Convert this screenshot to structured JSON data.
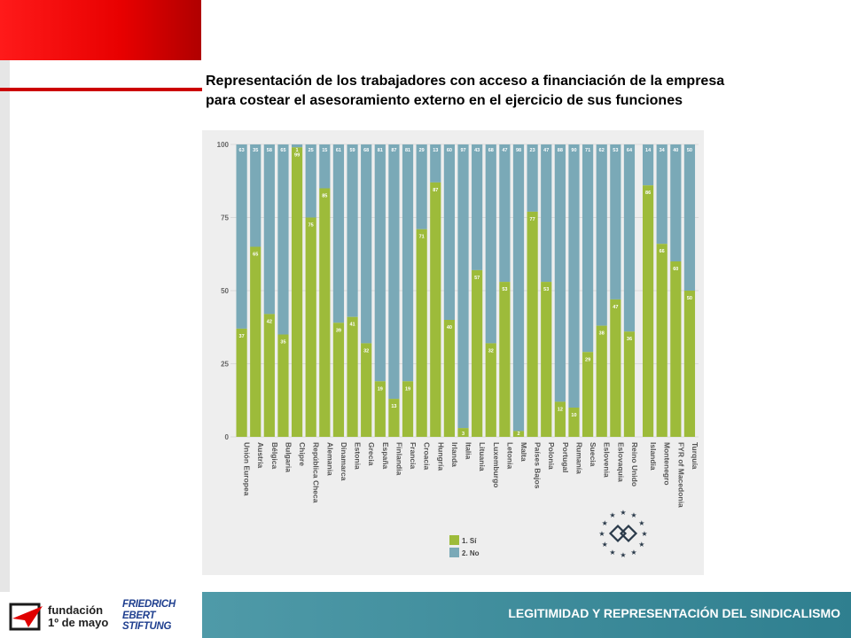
{
  "title_lines": [
    "Representación de los trabajadores con acceso a financiación de la empresa",
    "para costear el asesoramiento externo en el ejercicio de sus funciones"
  ],
  "footer": {
    "text": "LEGITIMIDAD Y REPRESENTACIÓN DEL SINDICALISMO",
    "logo_fundacion_lines": [
      "fundación",
      "1º de mayo"
    ],
    "logo_fes_lines": [
      "FRIEDRICH",
      "EBERT",
      "STIFTUNG"
    ]
  },
  "colors": {
    "si": "#9dbb3a",
    "no": "#7aa9b7",
    "brand_red": "#e00000",
    "footer_teal": "#3f8d9b"
  },
  "chart_data": {
    "type": "bar",
    "stacked": true,
    "title": "",
    "xlabel": "",
    "ylabel": "",
    "ylim": [
      0,
      100
    ],
    "yticks": [
      0,
      25,
      50,
      75,
      100
    ],
    "grid": true,
    "legend_position": "bottom",
    "legend": [
      "1. Sí",
      "2. No"
    ],
    "categories": [
      "Unión Europea",
      "Austria",
      "Bélgica",
      "Bulgaria",
      "Chipre",
      "República Checa",
      "Alemania",
      "Dinamarca",
      "Estonia",
      "Grecia",
      "España",
      "Finlandia",
      "Francia",
      "Croacia",
      "Hungría",
      "Irlanda",
      "Italia",
      "Lituania",
      "Luxemburgo",
      "Letonia",
      "Malta",
      "Países Bajos",
      "Polonia",
      "Portugal",
      "Rumanía",
      "Suecia",
      "Eslovenia",
      "Eslovaquia",
      "Reino Unido",
      "Islandia",
      "Montenegro",
      "FYR of Macedonia",
      "Turquía"
    ],
    "series": [
      {
        "name": "1. Sí",
        "values": [
          37,
          65,
          42,
          35,
          99,
          75,
          85,
          39,
          41,
          32,
          19,
          13,
          19,
          71,
          87,
          40,
          3,
          57,
          32,
          53,
          2,
          77,
          53,
          12,
          10,
          29,
          38,
          47,
          36,
          86,
          66,
          60,
          50
        ]
      },
      {
        "name": "2. No",
        "values": [
          63,
          35,
          58,
          65,
          1,
          25,
          15,
          61,
          59,
          68,
          81,
          87,
          81,
          29,
          13,
          60,
          97,
          43,
          68,
          47,
          98,
          23,
          47,
          88,
          90,
          71,
          62,
          53,
          64,
          14,
          34,
          40,
          50
        ]
      }
    ]
  }
}
